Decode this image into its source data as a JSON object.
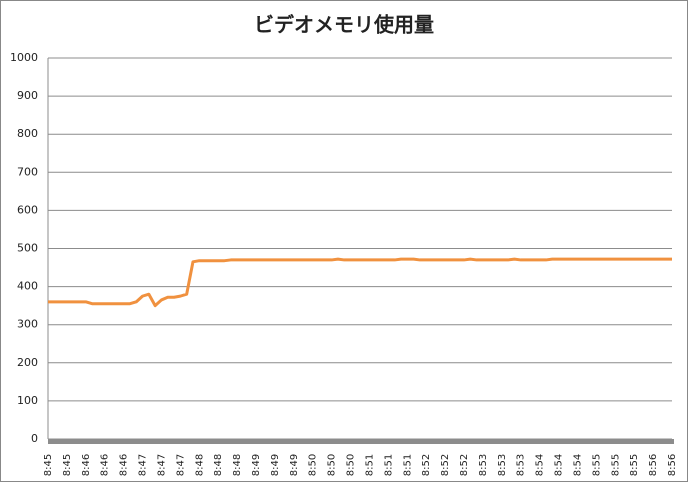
{
  "chart_data": {
    "type": "line",
    "title": "ビデオメモリ使用量",
    "categories": [
      "8:45",
      null,
      null,
      "8:45",
      null,
      null,
      "8:46",
      null,
      null,
      "8:46",
      null,
      null,
      "8:46",
      null,
      null,
      "8:47",
      null,
      null,
      "8:47",
      null,
      null,
      "8:47",
      null,
      null,
      "8:48",
      null,
      null,
      "8:48",
      null,
      null,
      "8:48",
      null,
      null,
      "8:49",
      null,
      null,
      "8:49",
      null,
      null,
      "8:49",
      null,
      null,
      "8:50",
      null,
      null,
      "8:50",
      null,
      null,
      "8:50",
      null,
      null,
      "8:51",
      null,
      null,
      "8:51",
      null,
      null,
      "8:51",
      null,
      null,
      "8:52",
      null,
      null,
      "8:52",
      null,
      null,
      "8:52",
      null,
      null,
      "8:53",
      null,
      null,
      "8:53",
      null,
      null,
      "8:53",
      null,
      null,
      "8:54",
      null,
      null,
      "8:54",
      null,
      null,
      "8:54",
      null,
      null,
      "8:55",
      null,
      null,
      "8:55",
      null,
      null,
      "8:55",
      null,
      null,
      "8:56",
      null,
      null,
      "8:56"
    ],
    "series": [
      {
        "color": "#f0913f",
        "values": [
          360,
          360,
          360,
          360,
          360,
          360,
          360,
          355,
          355,
          355,
          355,
          355,
          355,
          355,
          360,
          375,
          380,
          350,
          365,
          372,
          372,
          375,
          380,
          465,
          468,
          468,
          468,
          468,
          468,
          470,
          470,
          470,
          470,
          470,
          470,
          470,
          470,
          470,
          470,
          470,
          470,
          470,
          470,
          470,
          470,
          470,
          472,
          470,
          470,
          470,
          470,
          470,
          470,
          470,
          470,
          470,
          472,
          472,
          472,
          470,
          470,
          470,
          470,
          470,
          470,
          470,
          470,
          472,
          470,
          470,
          470,
          470,
          470,
          470,
          472,
          470,
          470,
          470,
          470,
          470,
          472,
          472,
          472,
          472,
          472,
          472,
          472,
          472,
          472,
          472,
          472,
          472,
          472,
          472,
          472,
          472,
          472,
          472,
          472,
          472
        ]
      }
    ],
    "ylim": [
      0,
      1000
    ],
    "yticks": [
      0,
      100,
      200,
      300,
      400,
      500,
      600,
      700,
      800,
      900,
      1000
    ],
    "grid": true
  }
}
